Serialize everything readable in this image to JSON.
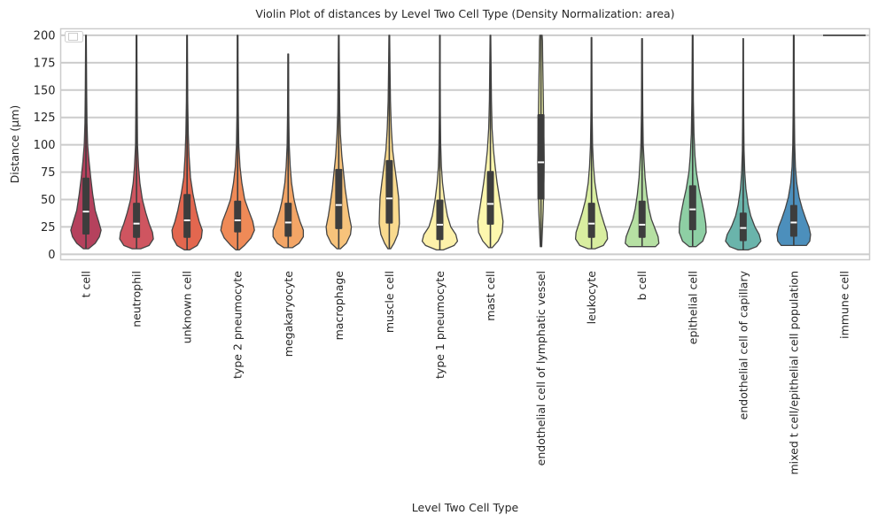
{
  "chart_data": {
    "type": "violin",
    "title": "Violin Plot of distances by Level Two Cell Type (Density Normalization: area)",
    "xlabel": "Level Two Cell Type",
    "ylabel": "Distance (µm)",
    "ylim": [
      -5,
      206
    ],
    "yticks": [
      0,
      25,
      50,
      75,
      100,
      125,
      150,
      175,
      200
    ],
    "grid": true,
    "legend": "top-left (empty)",
    "categories": [
      {
        "name": "t cell",
        "color": "#b5415d",
        "min": 5,
        "max": 200,
        "q1": 18,
        "median": 39,
        "q3": 70,
        "w": [
          [
            5,
            0.15
          ],
          [
            10,
            0.55
          ],
          [
            16,
            0.8
          ],
          [
            22,
            0.9
          ],
          [
            30,
            0.75
          ],
          [
            40,
            0.55
          ],
          [
            55,
            0.4
          ],
          [
            70,
            0.28
          ],
          [
            85,
            0.18
          ],
          [
            100,
            0.1
          ],
          [
            120,
            0.06
          ],
          [
            150,
            0.04
          ],
          [
            175,
            0.03
          ],
          [
            200,
            0.02
          ]
        ]
      },
      {
        "name": "neutrophil",
        "color": "#cf5560",
        "min": 5,
        "max": 200,
        "q1": 15,
        "median": 28,
        "q3": 47,
        "w": [
          [
            5,
            0.25
          ],
          [
            8,
            0.75
          ],
          [
            14,
            1.0
          ],
          [
            20,
            0.95
          ],
          [
            28,
            0.75
          ],
          [
            38,
            0.55
          ],
          [
            50,
            0.35
          ],
          [
            65,
            0.2
          ],
          [
            80,
            0.12
          ],
          [
            100,
            0.06
          ],
          [
            130,
            0.04
          ],
          [
            170,
            0.025
          ],
          [
            200,
            0.02
          ]
        ]
      },
      {
        "name": "unknown cell",
        "color": "#e3674f",
        "min": 4,
        "max": 200,
        "q1": 15,
        "median": 31,
        "q3": 55,
        "w": [
          [
            4,
            0.15
          ],
          [
            8,
            0.6
          ],
          [
            15,
            0.85
          ],
          [
            22,
            0.9
          ],
          [
            30,
            0.72
          ],
          [
            40,
            0.55
          ],
          [
            55,
            0.35
          ],
          [
            70,
            0.2
          ],
          [
            90,
            0.12
          ],
          [
            110,
            0.07
          ],
          [
            140,
            0.04
          ],
          [
            170,
            0.03
          ],
          [
            200,
            0.02
          ]
        ]
      },
      {
        "name": "type 2 pneumocyte",
        "color": "#ef8a57",
        "min": 4,
        "max": 200,
        "q1": 20,
        "median": 31,
        "q3": 49,
        "w": [
          [
            4,
            0.1
          ],
          [
            8,
            0.4
          ],
          [
            15,
            0.8
          ],
          [
            22,
            1.0
          ],
          [
            30,
            0.9
          ],
          [
            40,
            0.65
          ],
          [
            50,
            0.42
          ],
          [
            65,
            0.25
          ],
          [
            80,
            0.14
          ],
          [
            100,
            0.07
          ],
          [
            130,
            0.04
          ],
          [
            170,
            0.025
          ],
          [
            200,
            0.02
          ]
        ]
      },
      {
        "name": "megakaryocyte",
        "color": "#f3a566",
        "min": 6,
        "max": 183,
        "q1": 16,
        "median": 29,
        "q3": 47,
        "w": [
          [
            6,
            0.25
          ],
          [
            10,
            0.65
          ],
          [
            16,
            0.9
          ],
          [
            22,
            0.9
          ],
          [
            30,
            0.7
          ],
          [
            40,
            0.5
          ],
          [
            50,
            0.35
          ],
          [
            65,
            0.2
          ],
          [
            80,
            0.12
          ],
          [
            100,
            0.06
          ],
          [
            130,
            0.035
          ],
          [
            160,
            0.025
          ],
          [
            183,
            0.02
          ]
        ]
      },
      {
        "name": "macrophage",
        "color": "#f7c37b",
        "min": 5,
        "max": 200,
        "q1": 23,
        "median": 45,
        "q3": 78,
        "w": [
          [
            5,
            0.1
          ],
          [
            10,
            0.45
          ],
          [
            18,
            0.7
          ],
          [
            25,
            0.75
          ],
          [
            35,
            0.62
          ],
          [
            45,
            0.52
          ],
          [
            60,
            0.38
          ],
          [
            75,
            0.28
          ],
          [
            90,
            0.18
          ],
          [
            110,
            0.1
          ],
          [
            130,
            0.06
          ],
          [
            160,
            0.04
          ],
          [
            200,
            0.02
          ]
        ]
      },
      {
        "name": "muscle cell",
        "color": "#f9da8e",
        "min": 5,
        "max": 200,
        "q1": 28,
        "median": 51,
        "q3": 86,
        "w": [
          [
            5,
            0.08
          ],
          [
            10,
            0.28
          ],
          [
            18,
            0.5
          ],
          [
            28,
            0.6
          ],
          [
            40,
            0.58
          ],
          [
            52,
            0.55
          ],
          [
            65,
            0.45
          ],
          [
            80,
            0.32
          ],
          [
            95,
            0.2
          ],
          [
            115,
            0.12
          ],
          [
            140,
            0.07
          ],
          [
            170,
            0.04
          ],
          [
            200,
            0.02
          ]
        ]
      },
      {
        "name": "type 1 pneumocyte",
        "color": "#fdf1aa",
        "min": 4,
        "max": 200,
        "q1": 13,
        "median": 27,
        "q3": 50,
        "w": [
          [
            4,
            0.2
          ],
          [
            8,
            0.85
          ],
          [
            12,
            1.05
          ],
          [
            18,
            0.95
          ],
          [
            25,
            0.65
          ],
          [
            35,
            0.45
          ],
          [
            50,
            0.28
          ],
          [
            65,
            0.16
          ],
          [
            80,
            0.09
          ],
          [
            100,
            0.05
          ],
          [
            130,
            0.03
          ],
          [
            170,
            0.02
          ],
          [
            200,
            0.015
          ]
        ]
      },
      {
        "name": "mast cell",
        "color": "#fdf7ae",
        "min": 6,
        "max": 200,
        "q1": 27,
        "median": 46,
        "q3": 76,
        "w": [
          [
            6,
            0.1
          ],
          [
            12,
            0.45
          ],
          [
            20,
            0.7
          ],
          [
            30,
            0.75
          ],
          [
            40,
            0.65
          ],
          [
            50,
            0.55
          ],
          [
            65,
            0.4
          ],
          [
            80,
            0.28
          ],
          [
            95,
            0.18
          ],
          [
            115,
            0.1
          ],
          [
            140,
            0.06
          ],
          [
            170,
            0.04
          ],
          [
            200,
            0.02
          ]
        ]
      },
      {
        "name": "endothelial cell of lymphatic vessel",
        "color": "#f1f5a6",
        "min": 7,
        "max": 200,
        "q1": 50,
        "median": 84,
        "q3": 128,
        "w": [
          [
            7,
            0.04
          ],
          [
            20,
            0.08
          ],
          [
            40,
            0.13
          ],
          [
            55,
            0.16
          ],
          [
            70,
            0.18
          ],
          [
            85,
            0.19
          ],
          [
            100,
            0.18
          ],
          [
            120,
            0.16
          ],
          [
            140,
            0.14
          ],
          [
            160,
            0.12
          ],
          [
            180,
            0.1
          ],
          [
            195,
            0.09
          ],
          [
            200,
            0.07
          ]
        ]
      },
      {
        "name": "leukocyte",
        "color": "#d9eea0",
        "min": 5,
        "max": 198,
        "q1": 15,
        "median": 28,
        "q3": 47,
        "w": [
          [
            5,
            0.2
          ],
          [
            8,
            0.7
          ],
          [
            14,
            0.95
          ],
          [
            20,
            0.92
          ],
          [
            28,
            0.75
          ],
          [
            38,
            0.55
          ],
          [
            50,
            0.35
          ],
          [
            65,
            0.2
          ],
          [
            80,
            0.12
          ],
          [
            100,
            0.06
          ],
          [
            130,
            0.035
          ],
          [
            170,
            0.025
          ],
          [
            198,
            0.02
          ]
        ]
      },
      {
        "name": "b cell",
        "color": "#b6e0a3",
        "min": 7,
        "max": 197,
        "q1": 15,
        "median": 27,
        "q3": 49,
        "w": [
          [
            7,
            0.8
          ],
          [
            10,
            1.0
          ],
          [
            16,
            0.95
          ],
          [
            24,
            0.75
          ],
          [
            32,
            0.55
          ],
          [
            42,
            0.4
          ],
          [
            55,
            0.28
          ],
          [
            70,
            0.18
          ],
          [
            85,
            0.12
          ],
          [
            100,
            0.07
          ],
          [
            130,
            0.04
          ],
          [
            170,
            0.025
          ],
          [
            197,
            0.02
          ]
        ]
      },
      {
        "name": "epithelial cell",
        "color": "#8ecfa4",
        "min": 7,
        "max": 200,
        "q1": 22,
        "median": 41,
        "q3": 63,
        "w": [
          [
            7,
            0.2
          ],
          [
            12,
            0.6
          ],
          [
            20,
            0.8
          ],
          [
            28,
            0.78
          ],
          [
            38,
            0.68
          ],
          [
            48,
            0.55
          ],
          [
            60,
            0.38
          ],
          [
            75,
            0.22
          ],
          [
            90,
            0.14
          ],
          [
            110,
            0.08
          ],
          [
            140,
            0.045
          ],
          [
            170,
            0.03
          ],
          [
            200,
            0.02
          ]
        ]
      },
      {
        "name": "endothelial cell of capillary",
        "color": "#6ab4ab",
        "min": 4,
        "max": 197,
        "q1": 12,
        "median": 24,
        "q3": 38,
        "w": [
          [
            4,
            0.3
          ],
          [
            7,
            0.8
          ],
          [
            12,
            1.05
          ],
          [
            18,
            0.95
          ],
          [
            25,
            0.7
          ],
          [
            35,
            0.45
          ],
          [
            45,
            0.3
          ],
          [
            60,
            0.16
          ],
          [
            75,
            0.09
          ],
          [
            95,
            0.05
          ],
          [
            130,
            0.03
          ],
          [
            170,
            0.02
          ],
          [
            197,
            0.015
          ]
        ]
      },
      {
        "name": "mixed t cell/epithelial cell population",
        "color": "#4c8fbc",
        "min": 8,
        "max": 200,
        "q1": 16,
        "median": 29,
        "q3": 45,
        "w": [
          [
            8,
            0.75
          ],
          [
            12,
            0.95
          ],
          [
            18,
            1.0
          ],
          [
            25,
            0.9
          ],
          [
            32,
            0.72
          ],
          [
            42,
            0.5
          ],
          [
            52,
            0.32
          ],
          [
            65,
            0.18
          ],
          [
            80,
            0.1
          ],
          [
            100,
            0.06
          ],
          [
            130,
            0.035
          ],
          [
            170,
            0.025
          ],
          [
            200,
            0.02
          ]
        ]
      },
      {
        "name": "immune cell",
        "color": "#5e4fa2",
        "min": 200,
        "max": 200,
        "q1": 200,
        "median": 200,
        "q3": 200,
        "w": []
      }
    ]
  }
}
